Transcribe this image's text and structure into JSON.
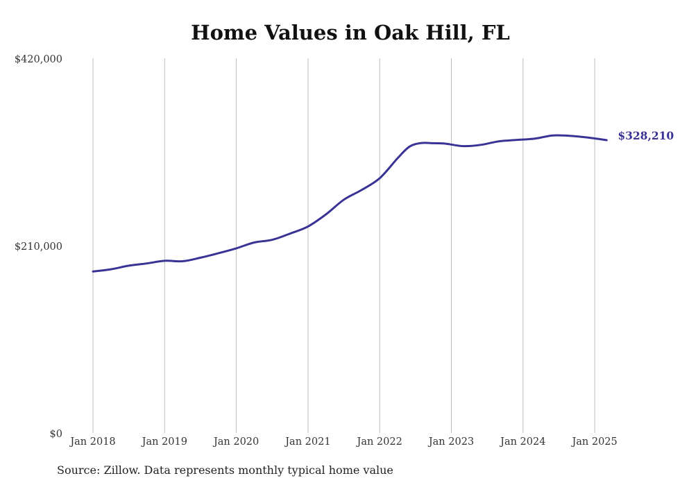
{
  "chart_data": {
    "type": "line",
    "title": "Home Values in Oak Hill, FL",
    "source": "Source: Zillow. Data represents monthly typical home value",
    "xlabel": "",
    "ylabel": "",
    "ylim": [
      0,
      420000
    ],
    "y_ticks": [
      {
        "value": 0,
        "label": "$0"
      },
      {
        "value": 210000,
        "label": "$210,000"
      },
      {
        "value": 420000,
        "label": "$420,000"
      }
    ],
    "x_ticks": [
      {
        "value": "2018-01",
        "label": "Jan 2018"
      },
      {
        "value": "2019-01",
        "label": "Jan 2019"
      },
      {
        "value": "2020-01",
        "label": "Jan 2020"
      },
      {
        "value": "2021-01",
        "label": "Jan 2021"
      },
      {
        "value": "2022-01",
        "label": "Jan 2022"
      },
      {
        "value": "2023-01",
        "label": "Jan 2023"
      },
      {
        "value": "2024-01",
        "label": "Jan 2024"
      },
      {
        "value": "2025-01",
        "label": "Jan 2025"
      }
    ],
    "grid": "vertical",
    "line_color": "#3a3396",
    "end_label": "$328,210",
    "series": [
      {
        "name": "",
        "points": [
          [
            "2018-01",
            181000
          ],
          [
            "2018-04",
            183500
          ],
          [
            "2018-07",
            187500
          ],
          [
            "2018-10",
            190000
          ],
          [
            "2019-01",
            193000
          ],
          [
            "2019-04",
            192500
          ],
          [
            "2019-07",
            196500
          ],
          [
            "2019-10",
            201500
          ],
          [
            "2020-01",
            207000
          ],
          [
            "2020-04",
            213500
          ],
          [
            "2020-07",
            216500
          ],
          [
            "2020-10",
            223500
          ],
          [
            "2021-01",
            231500
          ],
          [
            "2021-04",
            245000
          ],
          [
            "2021-07",
            261500
          ],
          [
            "2021-10",
            272500
          ],
          [
            "2022-01",
            285500
          ],
          [
            "2022-04",
            308000
          ],
          [
            "2022-06",
            321000
          ],
          [
            "2022-08",
            325000
          ],
          [
            "2022-10",
            324800
          ],
          [
            "2022-12",
            324300
          ],
          [
            "2023-03",
            321500
          ],
          [
            "2023-06",
            323000
          ],
          [
            "2023-09",
            327000
          ],
          [
            "2023-12",
            328500
          ],
          [
            "2024-03",
            330000
          ],
          [
            "2024-06",
            333500
          ],
          [
            "2024-09",
            333000
          ],
          [
            "2024-12",
            331000
          ],
          [
            "2025-03",
            328210
          ]
        ]
      }
    ]
  }
}
